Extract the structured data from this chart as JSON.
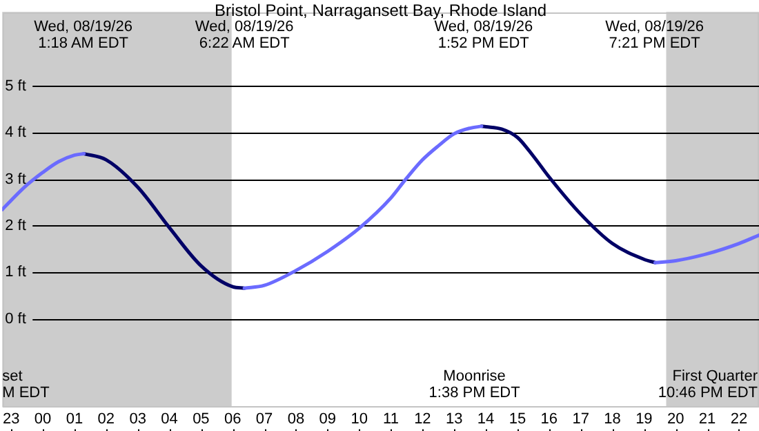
{
  "chart_data": {
    "type": "line",
    "title": "Bristol Point, Narragansett Bay, Rhode Island",
    "xlim": [
      "--08-18T22:43",
      "--08-19T22:38"
    ],
    "xticks": [
      {
        "value": "--08-18T23:00",
        "label": "23"
      },
      {
        "value": "--08-19T00:00",
        "label": "00"
      },
      {
        "value": "--08-19T01:00",
        "label": "01"
      },
      {
        "value": "--08-19T02:00",
        "label": "02"
      },
      {
        "value": "--08-19T03:00",
        "label": "03"
      },
      {
        "value": "--08-19T04:00",
        "label": "04"
      },
      {
        "value": "--08-19T05:00",
        "label": "05"
      },
      {
        "value": "--08-19T06:00",
        "label": "06"
      },
      {
        "value": "--08-19T07:00",
        "label": "07"
      },
      {
        "value": "--08-19T08:00",
        "label": "08"
      },
      {
        "value": "--08-19T09:00",
        "label": "09"
      },
      {
        "value": "--08-19T10:00",
        "label": "10"
      },
      {
        "value": "--08-19T11:00",
        "label": "11"
      },
      {
        "value": "--08-19T12:00",
        "label": "12"
      },
      {
        "value": "--08-19T13:00",
        "label": "13"
      },
      {
        "value": "--08-19T14:00",
        "label": "14"
      },
      {
        "value": "--08-19T15:00",
        "label": "15"
      },
      {
        "value": "--08-19T16:00",
        "label": "16"
      },
      {
        "value": "--08-19T17:00",
        "label": "17"
      },
      {
        "value": "--08-19T18:00",
        "label": "18"
      },
      {
        "value": "--08-19T19:00",
        "label": "19"
      },
      {
        "value": "--08-19T20:00",
        "label": "20"
      },
      {
        "value": "--08-19T21:00",
        "label": "21"
      },
      {
        "value": "--08-19T22:00",
        "label": "22"
      }
    ],
    "ylim": [
      -1.9,
      6.6
    ],
    "yticks": [
      {
        "value": 0,
        "label": "0 ft"
      },
      {
        "value": 1,
        "label": "1 ft"
      },
      {
        "value": 2,
        "label": "2 ft"
      },
      {
        "value": 3,
        "label": "3 ft"
      },
      {
        "value": 4,
        "label": "4 ft"
      },
      {
        "value": 5,
        "label": "5 ft"
      }
    ],
    "grid": "y",
    "line_style": "solid",
    "marker": "none",
    "series": [
      {
        "color": "#6b6bff",
        "x": [
          "--08-18T22:43",
          "--08-18T23:00",
          "--08-18T23:30",
          "--08-19T00:00",
          "--08-19T00:30",
          "--08-19T01:00",
          "--08-19T01:18",
          "--08-19T01:19",
          "--08-19T06:21",
          "--08-19T06:22",
          "--08-19T07:00",
          "--08-19T08:00",
          "--08-19T09:00",
          "--08-19T10:00",
          "--08-19T11:00",
          "--08-19T11:28",
          "--08-19T12:00",
          "--08-19T12:30",
          "--08-19T13:00",
          "--08-19T13:30",
          "--08-19T13:52",
          "--08-19T13:53",
          "--08-19T19:20",
          "--08-19T19:21",
          "--08-19T20:00",
          "--08-19T21:00",
          "--08-19T22:00",
          "--08-19T22:38"
        ],
        "values": [
          2.35,
          2.55,
          2.88,
          3.15,
          3.38,
          3.52,
          3.55,
          null,
          null,
          0.66,
          0.72,
          1.04,
          1.45,
          1.95,
          2.6,
          3.0,
          3.42,
          3.72,
          3.98,
          4.1,
          4.14,
          null,
          null,
          1.21,
          1.25,
          1.4,
          1.62,
          1.8
        ]
      },
      {
        "color": "#000066",
        "x": [
          "--08-19T01:18",
          "--08-19T02:00",
          "--08-19T03:00",
          "--08-19T04:00",
          "--08-19T05:00",
          "--08-19T06:00",
          "--08-19T06:22",
          "--08-19T06:23",
          "--08-19T13:51",
          "--08-19T13:52",
          "--08-19T14:00",
          "--08-19T14:30",
          "--08-19T15:00",
          "--08-19T15:30",
          "--08-19T16:00",
          "--08-19T17:00",
          "--08-19T18:00",
          "--08-19T19:00",
          "--08-19T19:21"
        ],
        "values": [
          3.55,
          3.42,
          2.83,
          1.96,
          1.14,
          0.69,
          0.66,
          null,
          null,
          4.14,
          4.13,
          4.08,
          3.9,
          3.5,
          3.05,
          2.25,
          1.62,
          1.28,
          1.21
        ]
      }
    ],
    "bands": [
      {
        "axis": "x",
        "from": "--08-18T22:43",
        "to": "--08-19T05:58",
        "color": "#cccccc"
      },
      {
        "axis": "x",
        "from": "--08-19T19:42",
        "to": "--08-19T22:38",
        "color": "#cccccc"
      }
    ],
    "annotations": [
      "Wed, 08/19/26\n1:18 AM EDT",
      "Wed, 08/19/26\n6:22 AM EDT",
      "Wed, 08/19/26\n1:52 PM EDT",
      "Wed, 08/19/26\n7:21 PM EDT",
      "Moonrise\n1:38 PM EDT",
      "set\nM EDT",
      "First Quarter\n10:46 PM EDT"
    ]
  }
}
